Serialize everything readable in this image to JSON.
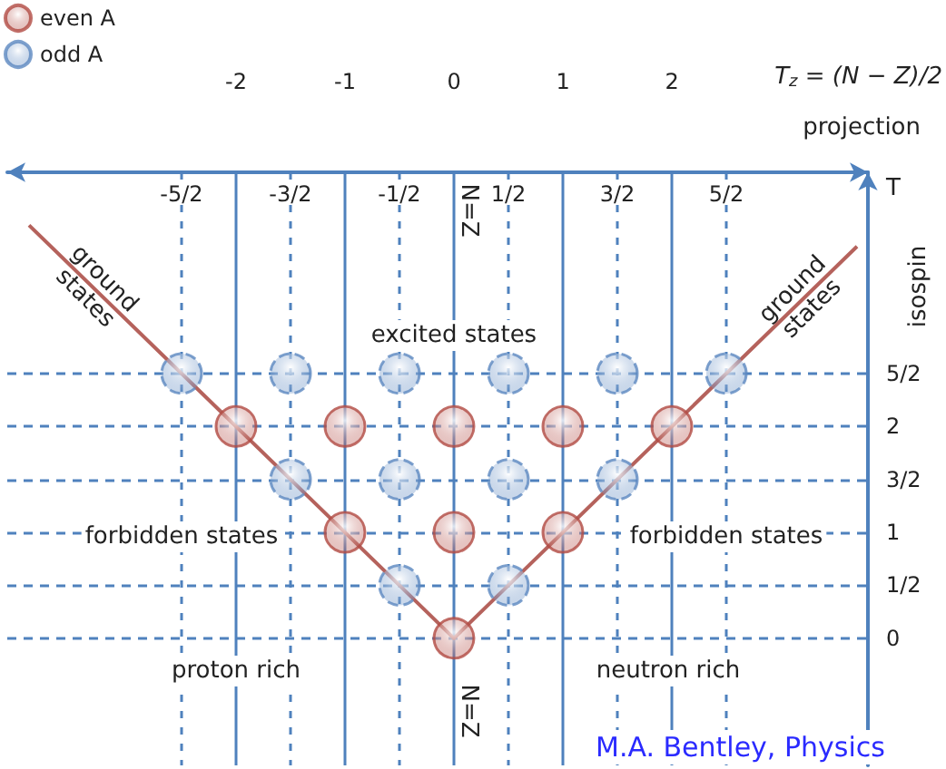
{
  "chart_data": {
    "type": "scatter",
    "xlabel": "T$_{z}$ = (N − Z)/2",
    "x2label": "projection",
    "ylabel": "isospin",
    "xlim": [
      -4.1,
      3.8
    ],
    "xticks": [
      -2,
      -1,
      0,
      1,
      2
    ],
    "x2lim": [
      -4.1,
      3.8
    ],
    "x2ticks": [
      {
        "value": -2.5,
        "label": "-5/2"
      },
      {
        "value": -1.5,
        "label": "-3/2"
      },
      {
        "value": -0.5,
        "label": "-1/2"
      },
      {
        "value": 0.5,
        "label": "1/2"
      },
      {
        "value": 1.5,
        "label": "3/2"
      },
      {
        "value": 2.5,
        "label": "5/2"
      }
    ],
    "ylim": [
      -1.2,
      4.4
    ],
    "yticks": [
      0,
      {
        "value": 0.5,
        "label": "1/2"
      },
      1,
      {
        "value": 1.5,
        "label": "3/2"
      },
      2,
      {
        "value": 2.5,
        "label": "5/2"
      }
    ],
    "grid": true,
    "legend": "top left",
    "marker": "circle",
    "series": [
      {
        "name": "even A",
        "color": "#b24b44",
        "x": [
          0,
          -1,
          0,
          1,
          -2,
          -1,
          0,
          1,
          2
        ],
        "values": [
          0,
          1,
          1,
          1,
          2,
          2,
          2,
          2,
          2
        ]
      },
      {
        "name": "odd A",
        "color": "#5d88c0",
        "x": [
          -0.5,
          0.5,
          -1.5,
          -0.5,
          0.5,
          1.5,
          -2.5,
          -1.5,
          -0.5,
          0.5,
          1.5,
          2.5
        ],
        "values": [
          0.5,
          0.5,
          1.5,
          1.5,
          1.5,
          1.5,
          2.5,
          2.5,
          2.5,
          2.5,
          2.5,
          2.5
        ]
      },
      {
        "type": "line",
        "marker": "none",
        "color": "#b5625c",
        "x": [
          -3.9,
          0,
          3.7
        ],
        "values": [
          3.9,
          0,
          3.7
        ]
      }
    ],
    "annotations": [
      "excited states",
      "forbidden states",
      "forbidden states",
      "proton rich",
      "neutron rich",
      "N=Z",
      "N=Z",
      "T",
      "M.A. Bentley, Physics",
      {
        "text": "ground states",
        "x": -3.3,
        "y": 3.3
      },
      {
        "text": "ground states",
        "x": 3.2,
        "y": 3.2
      }
    ]
  }
}
